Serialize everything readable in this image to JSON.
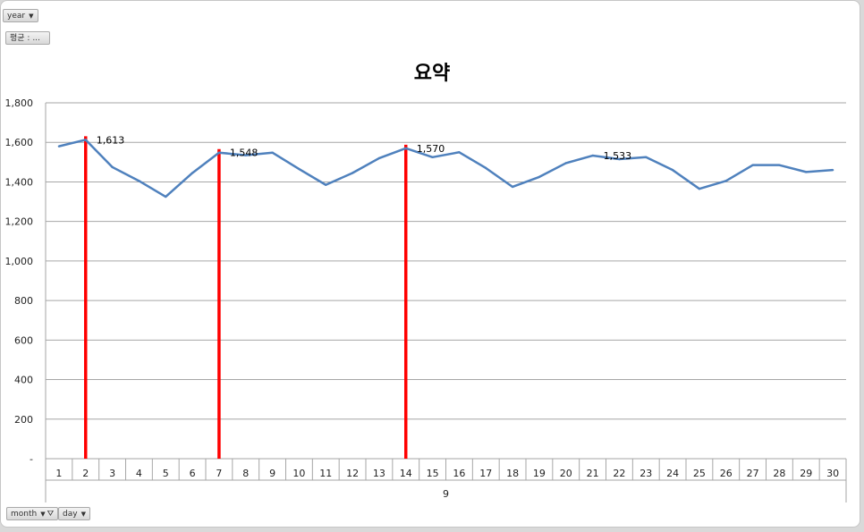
{
  "filters": {
    "year_label": "year",
    "avg_label": "평균 : ...",
    "month_label": "month",
    "day_label": "day"
  },
  "chart_data": {
    "type": "line",
    "title": "요약",
    "x": [
      1,
      2,
      3,
      4,
      5,
      6,
      7,
      8,
      9,
      10,
      11,
      12,
      13,
      14,
      15,
      16,
      17,
      18,
      19,
      20,
      21,
      22,
      23,
      24,
      25,
      26,
      27,
      28,
      29,
      30
    ],
    "x_tick_labels": [
      "1",
      "2",
      "3",
      "4",
      "5",
      "6",
      "7",
      "8",
      "9",
      "10",
      "11",
      "12",
      "13",
      "14",
      "15",
      "16",
      "17",
      "18",
      "19",
      "20",
      "21",
      "22",
      "23",
      "24",
      "25",
      "26",
      "27",
      "28",
      "29",
      "30"
    ],
    "x_group_label": "9",
    "y_tick_labels": [
      "-",
      "200",
      "400",
      "600",
      "800",
      "1,000",
      "1,200",
      "1,400",
      "1,600",
      "1,800"
    ],
    "ylim": [
      0,
      1800
    ],
    "grid": true,
    "series": [
      {
        "values": [
          1580,
          1613,
          1475,
          1405,
          1325,
          1445,
          1548,
          1535,
          1548,
          1465,
          1385,
          1445,
          1520,
          1570,
          1525,
          1550,
          1470,
          1375,
          1425,
          1495,
          1533,
          1515,
          1525,
          1460,
          1365,
          1405,
          1485,
          1485,
          1450,
          1460
        ],
        "color": "#4f81bd"
      }
    ],
    "data_labels": [
      {
        "x": 2,
        "text": "1,613"
      },
      {
        "x": 7,
        "text": "1,548"
      },
      {
        "x": 14,
        "text": "1,570"
      },
      {
        "x": 21,
        "text": "1,533"
      }
    ],
    "markers": [
      {
        "x": 2,
        "color": "#ff0000"
      },
      {
        "x": 7,
        "color": "#ff0000"
      },
      {
        "x": 14,
        "color": "#ff0000"
      }
    ]
  }
}
